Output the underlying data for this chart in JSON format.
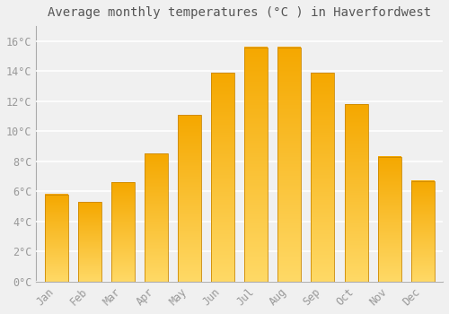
{
  "title": "Average monthly temperatures (°C ) in Haverfordwest",
  "months": [
    "Jan",
    "Feb",
    "Mar",
    "Apr",
    "May",
    "Jun",
    "Jul",
    "Aug",
    "Sep",
    "Oct",
    "Nov",
    "Dec"
  ],
  "values": [
    5.8,
    5.3,
    6.6,
    8.5,
    11.1,
    13.9,
    15.6,
    15.6,
    13.9,
    11.8,
    8.3,
    6.7
  ],
  "bar_color_top": "#F5A800",
  "bar_color_bottom": "#FFD966",
  "ylim": [
    0,
    17
  ],
  "yticks": [
    0,
    2,
    4,
    6,
    8,
    10,
    12,
    14,
    16
  ],
  "ytick_labels": [
    "0°C",
    "2°C",
    "4°C",
    "6°C",
    "8°C",
    "10°C",
    "12°C",
    "14°C",
    "16°C"
  ],
  "background_color": "#F0F0F0",
  "grid_color": "#FFFFFF",
  "title_fontsize": 10,
  "tick_fontsize": 8.5,
  "bar_edge_color": "#CC8800",
  "bar_width": 0.7
}
